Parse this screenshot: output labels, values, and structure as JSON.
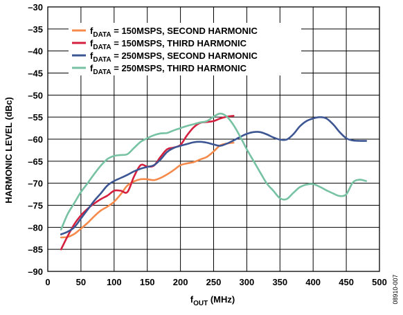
{
  "chart_data": {
    "type": "line",
    "title": "",
    "xlabel": {
      "main": "f",
      "sub": "OUT",
      "rest": " (MHz)"
    },
    "ylabel": "HARMONIC LEVEL (dBc)",
    "xlim": [
      0,
      500
    ],
    "ylim": [
      -90,
      -30
    ],
    "xticks": [
      0,
      50,
      100,
      150,
      200,
      250,
      300,
      350,
      400,
      450,
      500
    ],
    "yticks": [
      -30,
      -35,
      -40,
      -45,
      -50,
      -55,
      -60,
      -65,
      -70,
      -75,
      -80,
      -85,
      -90
    ],
    "xtick_labels": [
      "0",
      "50",
      "100",
      "150",
      "200",
      "250",
      "300",
      "350",
      "400",
      "450",
      "500"
    ],
    "ytick_labels": [
      "–30",
      "–35",
      "–40",
      "–45",
      "–50",
      "–55",
      "–60",
      "–65",
      "–70",
      "–75",
      "–80",
      "–85",
      "–90"
    ],
    "grid": true,
    "legend_position": "top-left",
    "figure_id": "08910-007",
    "series": [
      {
        "name": "fDATA = 150MSPS, SECOND HARMONIC",
        "legend": {
          "main": "f",
          "sub": "DATA",
          "rest": " = 150MSPS, SECOND HARMONIC"
        },
        "color": "#f58a4b",
        "x": [
          20,
          30,
          40,
          50,
          60,
          70,
          80,
          90,
          100,
          110,
          120,
          130,
          140,
          150,
          160,
          170,
          180,
          190,
          200,
          210,
          220,
          230,
          240,
          250,
          260,
          270,
          280
        ],
        "y": [
          -82.3,
          -82.2,
          -81.5,
          -80.3,
          -79,
          -77.5,
          -76.2,
          -75.3,
          -74.2,
          -72.5,
          -70.5,
          -69.6,
          -69.1,
          -69.1,
          -69.3,
          -68.8,
          -68,
          -67,
          -65.9,
          -65.5,
          -65.2,
          -64.6,
          -64,
          -62.8,
          -61.4,
          -61,
          -60.8
        ]
      },
      {
        "name": "fDATA = 150MSPS, THIRD HARMONIC",
        "legend": {
          "main": "f",
          "sub": "DATA",
          "rest": " = 150MSPS, THIRD HARMONIC"
        },
        "color": "#d41f3e",
        "x": [
          20,
          30,
          40,
          50,
          60,
          70,
          80,
          90,
          100,
          110,
          120,
          130,
          140,
          150,
          160,
          170,
          180,
          190,
          200,
          210,
          220,
          230,
          240,
          250,
          260,
          270,
          280
        ],
        "y": [
          -85,
          -82,
          -79.3,
          -77.3,
          -75.8,
          -74.6,
          -73.6,
          -72.8,
          -71.7,
          -71.7,
          -72,
          -68.5,
          -65.9,
          -66.2,
          -66,
          -64,
          -62.3,
          -61.9,
          -61.3,
          -59.1,
          -57.3,
          -56.3,
          -56.1,
          -55.9,
          -55.3,
          -54.9,
          -54.7
        ]
      },
      {
        "name": "fDATA = 250MSPS, SECOND HARMONIC",
        "legend": {
          "main": "f",
          "sub": "DATA",
          "rest": " = 250MSPS, SECOND HARMONIC"
        },
        "color": "#3c5593",
        "x": [
          20,
          30,
          40,
          50,
          60,
          70,
          80,
          90,
          100,
          110,
          120,
          130,
          140,
          150,
          160,
          170,
          180,
          190,
          200,
          210,
          220,
          230,
          240,
          250,
          260,
          270,
          280,
          290,
          300,
          310,
          320,
          330,
          340,
          350,
          360,
          370,
          380,
          390,
          400,
          410,
          420,
          430,
          440,
          450,
          460,
          470,
          480
        ],
        "y": [
          -81.6,
          -81,
          -80,
          -78,
          -76,
          -74,
          -72.3,
          -70.5,
          -69.5,
          -68.8,
          -68.1,
          -67.3,
          -66.7,
          -66.3,
          -65.9,
          -64.6,
          -62.9,
          -62,
          -61.5,
          -61.1,
          -60.7,
          -60.6,
          -60.8,
          -61.2,
          -61.5,
          -61,
          -60.3,
          -59.5,
          -58.8,
          -58.4,
          -58.4,
          -58.9,
          -59.6,
          -60.1,
          -60.1,
          -58.9,
          -57.1,
          -55.9,
          -55.3,
          -55,
          -55.3,
          -56.6,
          -58.4,
          -59.8,
          -60.3,
          -60.4,
          -60.4
        ]
      },
      {
        "name": "fDATA = 250MSPS, THIRD HARMONIC",
        "legend": {
          "main": "f",
          "sub": "DATA",
          "rest": " = 250MSPS, THIRD HARMONIC"
        },
        "color": "#76c2a3",
        "x": [
          20,
          30,
          40,
          50,
          60,
          70,
          80,
          90,
          100,
          110,
          120,
          130,
          140,
          150,
          160,
          170,
          180,
          190,
          200,
          210,
          220,
          230,
          240,
          250,
          260,
          270,
          280,
          290,
          300,
          310,
          320,
          330,
          340,
          350,
          360,
          370,
          380,
          390,
          400,
          410,
          420,
          430,
          440,
          450,
          460,
          470,
          480
        ],
        "y": [
          -80.5,
          -77,
          -74.5,
          -72,
          -70,
          -67.9,
          -66,
          -64.5,
          -63.8,
          -63.6,
          -63.4,
          -62,
          -60.6,
          -59.8,
          -59.1,
          -58.7,
          -58.6,
          -58,
          -57.5,
          -57,
          -56.6,
          -56.2,
          -55.9,
          -54.9,
          -54.2,
          -54.9,
          -56.8,
          -59.4,
          -62.3,
          -64.9,
          -67.5,
          -70,
          -71.7,
          -73.4,
          -73.6,
          -72.2,
          -70.9,
          -70.3,
          -70.2,
          -70.8,
          -71.6,
          -72.3,
          -72.9,
          -72.5,
          -69.8,
          -69.2,
          -69.5
        ]
      }
    ]
  }
}
